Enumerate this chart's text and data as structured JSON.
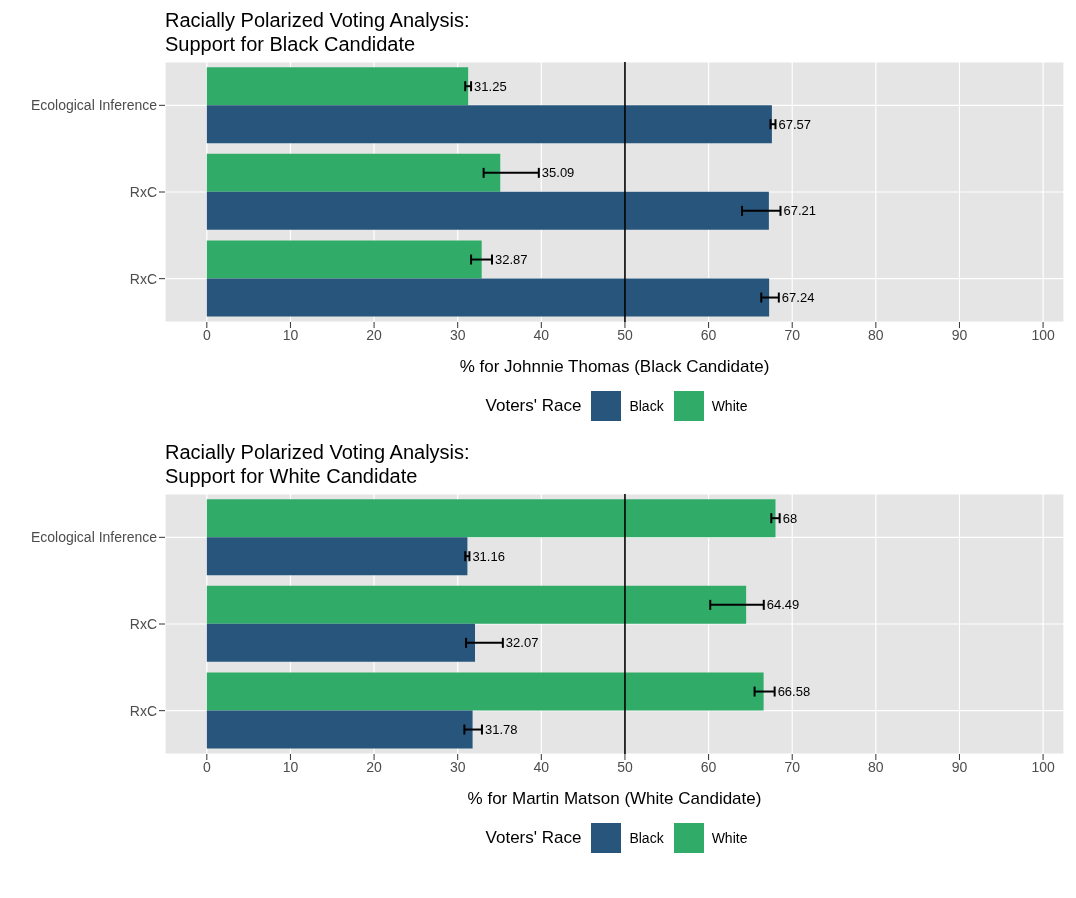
{
  "chart_data": [
    {
      "type": "bar",
      "orientation": "horizontal",
      "title": "Racially Polarized Voting Analysis:\nSupport for Black Candidate",
      "xlabel": "% for Johnnie Thomas (Black Candidate)",
      "legend_title": "Voters' Race",
      "categories": [
        "Ecological Inference",
        "RxC",
        "RxC"
      ],
      "series": [
        {
          "name": "Black",
          "color": "#27557b",
          "values": [
            67.57,
            67.21,
            67.24
          ],
          "errors": [
            [
              67.4,
              68.0
            ],
            [
              64.0,
              68.6
            ],
            [
              66.3,
              68.4
            ]
          ]
        },
        {
          "name": "White",
          "color": "#31ab68",
          "values": [
            31.25,
            35.09,
            32.87
          ],
          "errors": [
            [
              30.9,
              31.6
            ],
            [
              33.1,
              39.7
            ],
            [
              31.6,
              34.1
            ]
          ]
        }
      ],
      "xlim": [
        -5,
        102.5
      ],
      "xticks": [
        0,
        10,
        20,
        30,
        40,
        50,
        60,
        70,
        80,
        90,
        100
      ],
      "grid": true,
      "legend": "bottom",
      "data_labels": true,
      "ref_lines": [
        {
          "axis": "x",
          "value": 50,
          "color": "#000000"
        }
      ]
    },
    {
      "type": "bar",
      "orientation": "horizontal",
      "title": "Racially Polarized Voting Analysis:\nSupport for White Candidate",
      "xlabel": "% for Martin Matson (White Candidate)",
      "legend_title": "Voters' Race",
      "categories": [
        "Ecological Inference",
        "RxC",
        "RxC"
      ],
      "series": [
        {
          "name": "Black",
          "color": "#27557b",
          "values": [
            31.16,
            32.07,
            31.78
          ],
          "errors": [
            [
              30.9,
              31.4
            ],
            [
              31.0,
              35.4
            ],
            [
              30.8,
              32.9
            ]
          ]
        },
        {
          "name": "White",
          "color": "#31ab68",
          "values": [
            68,
            64.49,
            66.58
          ],
          "errors": [
            [
              67.5,
              68.5
            ],
            [
              60.2,
              66.6
            ],
            [
              65.5,
              67.9
            ]
          ]
        }
      ],
      "xlim": [
        -5,
        102.5
      ],
      "xticks": [
        0,
        10,
        20,
        30,
        40,
        50,
        60,
        70,
        80,
        90,
        100
      ],
      "grid": true,
      "legend": "bottom",
      "data_labels": true,
      "ref_lines": [
        {
          "axis": "x",
          "value": 50,
          "color": "#000000"
        }
      ]
    }
  ]
}
